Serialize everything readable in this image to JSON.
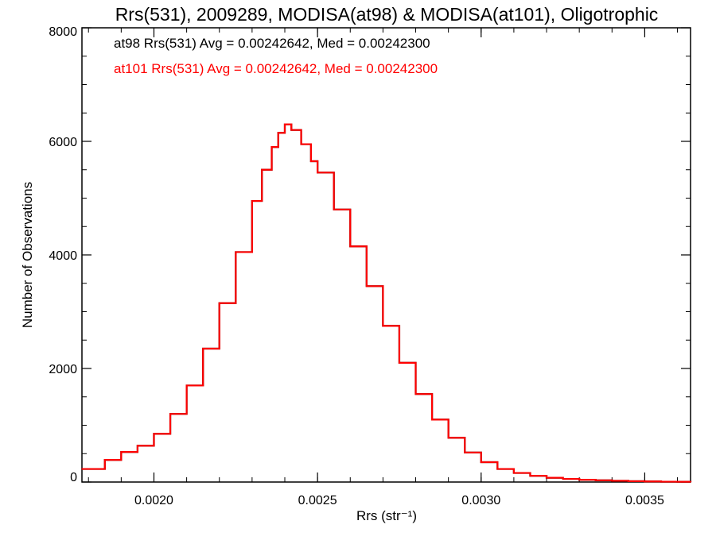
{
  "chart_data": {
    "type": "line",
    "step": true,
    "title": "Rrs(531), 2009289, MODISA(at98) & MODISA(at101), Oligotrophic",
    "xlabel": "Rrs (str⁻¹)",
    "ylabel": "Number of Observations",
    "xlim": [
      0.00178,
      0.00364
    ],
    "ylim": [
      0,
      8000
    ],
    "x_ticks": [
      0.002,
      0.0025,
      0.003,
      0.0035
    ],
    "x_tick_labels": [
      "0.0020",
      "0.0025",
      "0.0030",
      "0.0035"
    ],
    "y_ticks": [
      0,
      2000,
      4000,
      6000,
      8000
    ],
    "y_tick_labels": [
      "0",
      "2000",
      "4000",
      "6000",
      "8000"
    ],
    "grid": false,
    "annotations": [
      {
        "text": "at98 Rrs(531) Avg = 0.00242642, Med = 0.00242300",
        "color": "#000000"
      },
      {
        "text": "at101 Rrs(531) Avg = 0.00242642, Med = 0.00242300",
        "color": "#ff0000"
      }
    ],
    "series": [
      {
        "color": "#000000",
        "x": [
          0.00178,
          0.00185,
          0.0019,
          0.00195,
          0.002,
          0.00205,
          0.0021,
          0.00215,
          0.0022,
          0.00225,
          0.0023,
          0.00233,
          0.00236,
          0.00238,
          0.0024,
          0.00242,
          0.00245,
          0.00248,
          0.0025,
          0.00255,
          0.0026,
          0.00265,
          0.0027,
          0.00275,
          0.0028,
          0.00285,
          0.0029,
          0.00295,
          0.003,
          0.00305,
          0.0031,
          0.00315,
          0.0032,
          0.00325,
          0.0033,
          0.00335,
          0.0034,
          0.00345,
          0.0035,
          0.00355,
          0.0036,
          0.00364
        ],
        "y": [
          230,
          390,
          530,
          640,
          850,
          1200,
          1700,
          2350,
          3150,
          4050,
          4950,
          5500,
          5900,
          6150,
          6300,
          6200,
          5950,
          5650,
          5450,
          4800,
          4150,
          3450,
          2750,
          2100,
          1550,
          1100,
          780,
          520,
          350,
          230,
          160,
          110,
          75,
          55,
          40,
          30,
          22,
          15,
          10,
          6,
          4,
          2
        ]
      },
      {
        "color": "#ff0000",
        "x": [
          0.00178,
          0.00185,
          0.0019,
          0.00195,
          0.002,
          0.00205,
          0.0021,
          0.00215,
          0.0022,
          0.00225,
          0.0023,
          0.00233,
          0.00236,
          0.00238,
          0.0024,
          0.00242,
          0.00245,
          0.00248,
          0.0025,
          0.00255,
          0.0026,
          0.00265,
          0.0027,
          0.00275,
          0.0028,
          0.00285,
          0.0029,
          0.00295,
          0.003,
          0.00305,
          0.0031,
          0.00315,
          0.0032,
          0.00325,
          0.0033,
          0.00335,
          0.0034,
          0.00345,
          0.0035,
          0.00355,
          0.0036,
          0.00364
        ],
        "y": [
          230,
          390,
          530,
          640,
          850,
          1200,
          1700,
          2350,
          3150,
          4050,
          4950,
          5500,
          5900,
          6150,
          6300,
          6200,
          5950,
          5650,
          5450,
          4800,
          4150,
          3450,
          2750,
          2100,
          1550,
          1100,
          780,
          520,
          350,
          230,
          160,
          110,
          75,
          55,
          40,
          30,
          22,
          15,
          10,
          6,
          4,
          2
        ]
      }
    ]
  }
}
